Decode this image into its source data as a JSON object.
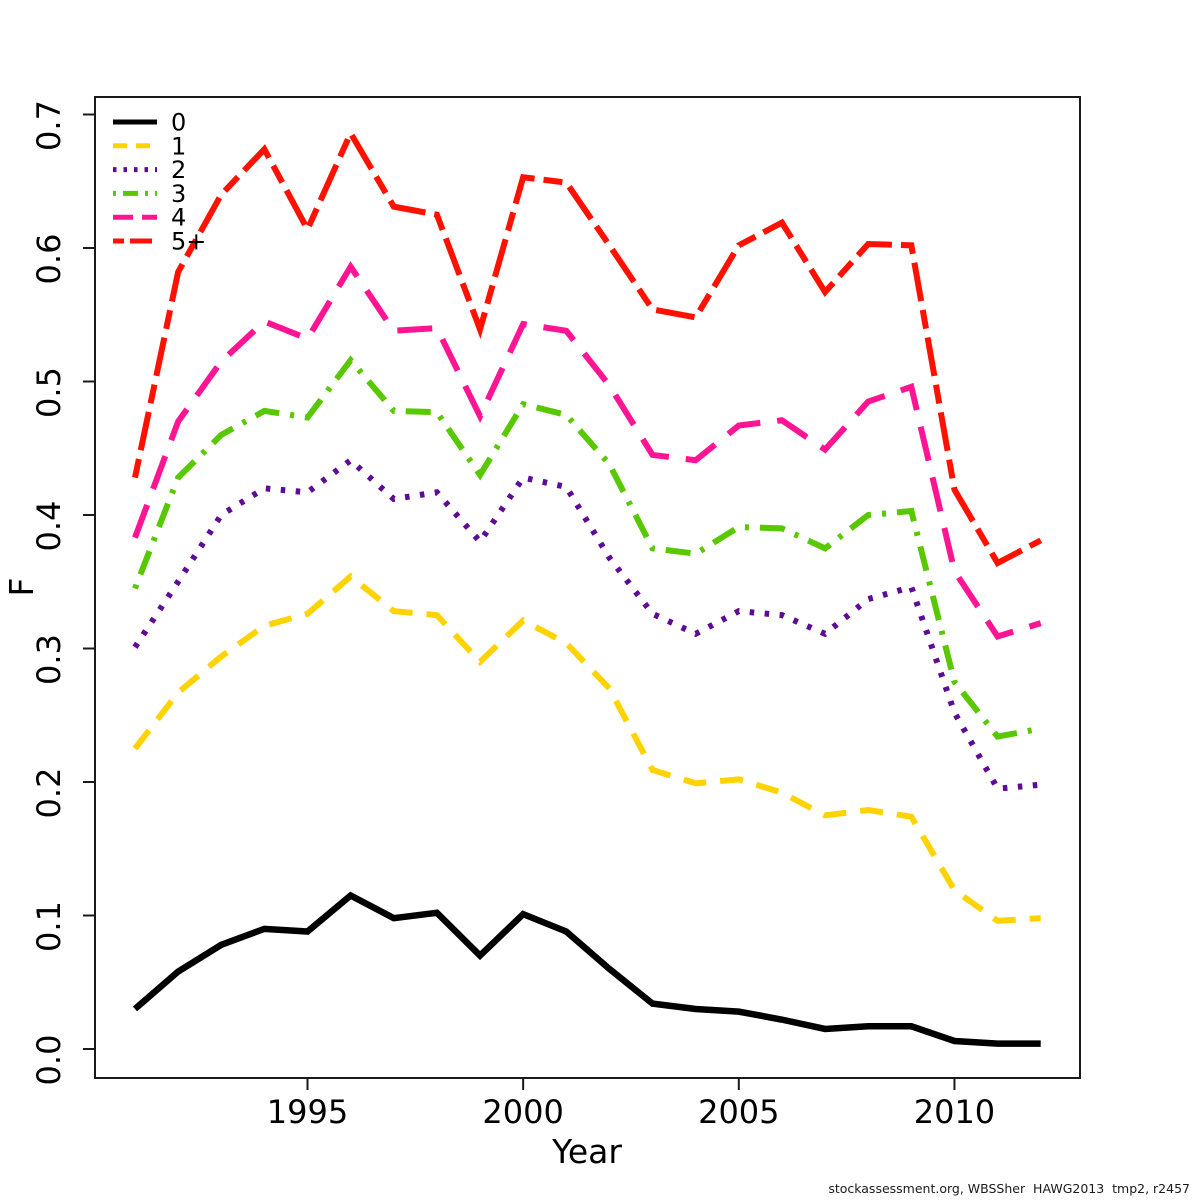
{
  "footer": {
    "credit": "stockassessment.org, WBSSher  HAWG2013  tmp2, r2457"
  },
  "chart_data": {
    "type": "line",
    "title": "",
    "xlabel": "Year",
    "ylabel": "F",
    "x": [
      1991,
      1992,
      1993,
      1994,
      1995,
      1996,
      1997,
      1998,
      1999,
      2000,
      2001,
      2002,
      2003,
      2004,
      2005,
      2006,
      2007,
      2008,
      2009,
      2010,
      2011,
      2012
    ],
    "xticks": [
      1995,
      2000,
      2005,
      2010
    ],
    "yticks": [
      "0.0",
      "0.1",
      "0.2",
      "0.3",
      "0.4",
      "0.5",
      "0.6",
      "0.7"
    ],
    "ylim": [
      0.0,
      0.7
    ],
    "xlim": [
      1990.5,
      2012.9
    ],
    "grid": false,
    "legend_position": "top-left",
    "series": [
      {
        "name": "0",
        "color": "#000000",
        "linetype": "solid",
        "values": [
          0.03,
          0.058,
          0.078,
          0.09,
          0.088,
          0.115,
          0.098,
          0.102,
          0.07,
          0.101,
          0.088,
          0.06,
          0.034,
          0.03,
          0.028,
          0.022,
          0.015,
          0.017,
          0.017,
          0.006,
          0.004,
          0.004
        ]
      },
      {
        "name": "1",
        "color": "#FFD300",
        "linetype": "dashed",
        "values": [
          0.225,
          0.267,
          0.294,
          0.317,
          0.326,
          0.354,
          0.328,
          0.325,
          0.29,
          0.321,
          0.304,
          0.27,
          0.209,
          0.199,
          0.202,
          0.192,
          0.175,
          0.179,
          0.174,
          0.119,
          0.096,
          0.098
        ]
      },
      {
        "name": "2",
        "color": "#5E0B96",
        "linetype": "dotted",
        "values": [
          0.301,
          0.35,
          0.4,
          0.42,
          0.417,
          0.441,
          0.412,
          0.417,
          0.38,
          0.428,
          0.421,
          0.368,
          0.326,
          0.311,
          0.328,
          0.325,
          0.311,
          0.337,
          0.346,
          0.252,
          0.195,
          0.198
        ]
      },
      {
        "name": "3",
        "color": "#58C800",
        "linetype": "dotdash",
        "values": [
          0.345,
          0.428,
          0.46,
          0.478,
          0.473,
          0.516,
          0.478,
          0.477,
          0.43,
          0.483,
          0.475,
          0.438,
          0.375,
          0.371,
          0.391,
          0.39,
          0.375,
          0.4,
          0.403,
          0.275,
          0.234,
          0.24
        ]
      },
      {
        "name": "4",
        "color": "#FF1493",
        "linetype": "longdash",
        "values": [
          0.383,
          0.47,
          0.515,
          0.545,
          0.532,
          0.586,
          0.538,
          0.54,
          0.474,
          0.543,
          0.538,
          0.497,
          0.445,
          0.441,
          0.467,
          0.471,
          0.449,
          0.485,
          0.496,
          0.358,
          0.309,
          0.319
        ]
      },
      {
        "name": "5+",
        "color": "#FE1100",
        "linetype": "twodash",
        "values": [
          0.428,
          0.582,
          0.64,
          0.674,
          0.614,
          0.686,
          0.631,
          0.625,
          0.539,
          0.653,
          0.649,
          0.602,
          0.554,
          0.548,
          0.602,
          0.619,
          0.567,
          0.603,
          0.602,
          0.419,
          0.364,
          0.381
        ]
      }
    ]
  }
}
